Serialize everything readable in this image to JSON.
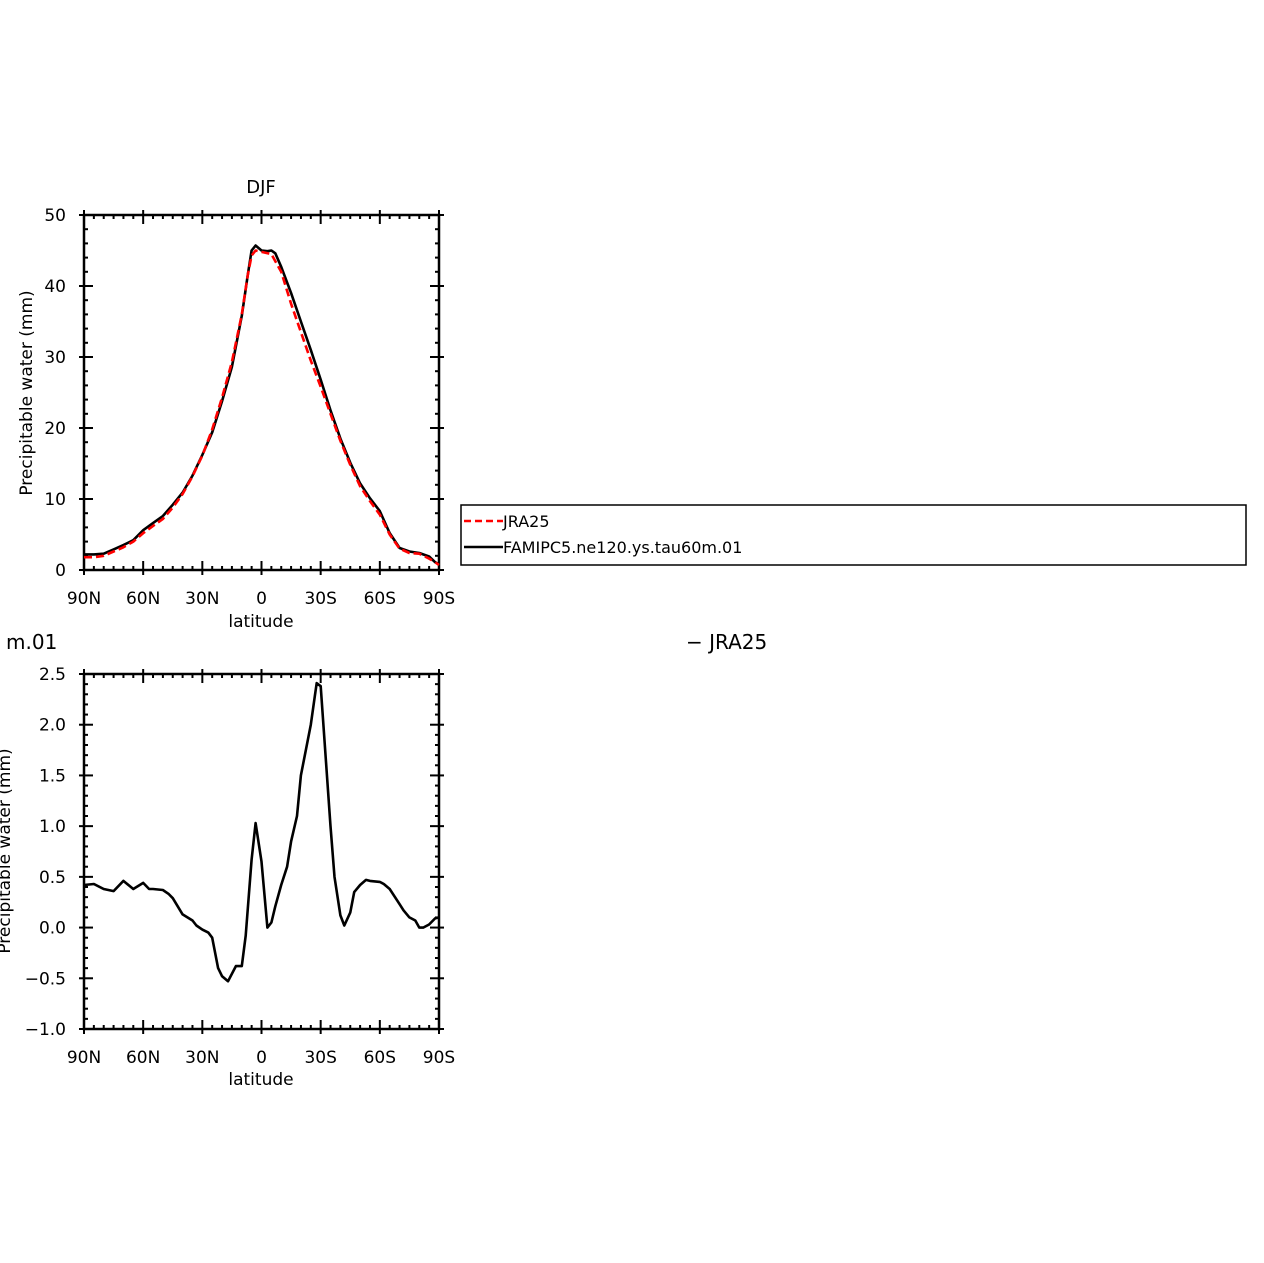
{
  "chart_data": [
    {
      "type": "line",
      "title": "DJF",
      "xlabel": "latitude",
      "ylabel": "Precipitable water (mm)",
      "xlim": [
        -90,
        90
      ],
      "ylim": [
        0,
        50
      ],
      "xticks": [
        -90,
        -60,
        -30,
        0,
        30,
        60,
        90
      ],
      "xtick_labels": [
        "90N",
        "60N",
        "30N",
        "0",
        "30S",
        "60S",
        "90S"
      ],
      "yticks": [
        0,
        10,
        20,
        30,
        40,
        50
      ],
      "ytick_labels": [
        "0",
        "10",
        "20",
        "30",
        "40",
        "50"
      ],
      "legend_position": "right",
      "series": [
        {
          "name": "JRA25",
          "color": "#ff0000",
          "dash": "dashed",
          "x": [
            -90,
            -85,
            -80,
            -75,
            -70,
            -65,
            -60,
            -55,
            -50,
            -45,
            -40,
            -35,
            -30,
            -25,
            -20,
            -15,
            -10,
            -7,
            -5,
            -3,
            0,
            5,
            10,
            15,
            20,
            25,
            30,
            35,
            40,
            45,
            50,
            55,
            60,
            65,
            70,
            75,
            80,
            85,
            88,
            90
          ],
          "y": [
            1.8,
            1.8,
            2.0,
            2.6,
            3.2,
            4.0,
            5.2,
            6.2,
            7.2,
            8.8,
            10.7,
            13.2,
            16.1,
            19.8,
            24.3,
            29.3,
            36.0,
            41.5,
            44.3,
            45.0,
            44.8,
            44.5,
            42.0,
            37.5,
            33.5,
            29.5,
            25.8,
            22.0,
            18.2,
            14.8,
            11.8,
            9.7,
            7.8,
            5.0,
            3.0,
            2.4,
            2.3,
            1.6,
            1.1,
            0.7
          ]
        },
        {
          "name": "FAMIPC5.ne120.ys.tau60m.01",
          "color": "#000000",
          "dash": "solid",
          "x": [
            -90,
            -85,
            -80,
            -75,
            -70,
            -65,
            -60,
            -55,
            -50,
            -45,
            -40,
            -35,
            -30,
            -25,
            -20,
            -15,
            -10,
            -7,
            -5,
            -3,
            0,
            3,
            5,
            7,
            10,
            15,
            20,
            25,
            30,
            35,
            40,
            45,
            50,
            55,
            60,
            65,
            70,
            75,
            80,
            85,
            88,
            90
          ],
          "y": [
            2.2,
            2.2,
            2.3,
            2.9,
            3.5,
            4.2,
            5.6,
            6.6,
            7.6,
            9.2,
            10.9,
            13.3,
            16.2,
            19.4,
            23.8,
            28.6,
            35.8,
            41.5,
            45.0,
            45.7,
            45.0,
            44.9,
            45.0,
            44.6,
            42.7,
            39.0,
            35.0,
            31.0,
            26.8,
            22.5,
            18.5,
            15.1,
            12.2,
            10.1,
            8.3,
            5.2,
            3.1,
            2.6,
            2.4,
            1.9,
            1.1,
            0.8
          ]
        }
      ]
    },
    {
      "type": "line",
      "title": "m.01",
      "title_right": "− JRA25",
      "xlabel": "latitude",
      "ylabel": "Precipitable water (mm)",
      "xlim": [
        -90,
        90
      ],
      "ylim": [
        -1.0,
        2.5
      ],
      "xticks": [
        -90,
        -60,
        -30,
        0,
        30,
        60,
        90
      ],
      "xtick_labels": [
        "90N",
        "60N",
        "30N",
        "0",
        "30S",
        "60S",
        "90S"
      ],
      "yticks": [
        -1.0,
        -0.5,
        0.0,
        0.5,
        1.0,
        1.5,
        2.0,
        2.5
      ],
      "ytick_labels": [
        "−1.0",
        "−0.5",
        "0.0",
        "0.5",
        "1.0",
        "1.5",
        "2.0",
        "2.5"
      ],
      "series": [
        {
          "color": "#000000",
          "dash": "solid",
          "x": [
            -90,
            -85,
            -80,
            -75,
            -70,
            -65,
            -60,
            -57,
            -55,
            -50,
            -47,
            -45,
            -40,
            -35,
            -33,
            -30,
            -27,
            -25,
            -22,
            -20,
            -17,
            -13,
            -10,
            -8,
            -5,
            -3,
            0,
            3,
            5,
            7,
            10,
            13,
            15,
            18,
            20,
            25,
            27,
            28,
            30,
            35,
            37,
            40,
            42,
            45,
            47,
            50,
            53,
            55,
            60,
            62,
            65,
            70,
            72,
            75,
            78,
            80,
            82,
            85,
            88,
            90
          ],
          "y": [
            0.42,
            0.43,
            0.38,
            0.36,
            0.46,
            0.38,
            0.44,
            0.38,
            0.38,
            0.37,
            0.33,
            0.29,
            0.13,
            0.07,
            0.02,
            -0.02,
            -0.05,
            -0.1,
            -0.4,
            -0.48,
            -0.53,
            -0.38,
            -0.38,
            -0.08,
            0.67,
            1.03,
            0.65,
            0.0,
            0.05,
            0.21,
            0.42,
            0.6,
            0.85,
            1.1,
            1.5,
            2.0,
            2.28,
            2.41,
            2.38,
            1.0,
            0.5,
            0.12,
            0.02,
            0.15,
            0.35,
            0.42,
            0.47,
            0.46,
            0.45,
            0.43,
            0.38,
            0.23,
            0.17,
            0.1,
            0.07,
            0.0,
            0.0,
            0.03,
            0.09,
            0.1
          ]
        }
      ]
    }
  ],
  "legend": [
    {
      "label": "JRA25",
      "color": "#ff0000",
      "dash": "dashed"
    },
    {
      "label": "FAMIPC5.ne120.ys.tau60m.01",
      "color": "#000000",
      "dash": "solid"
    }
  ]
}
